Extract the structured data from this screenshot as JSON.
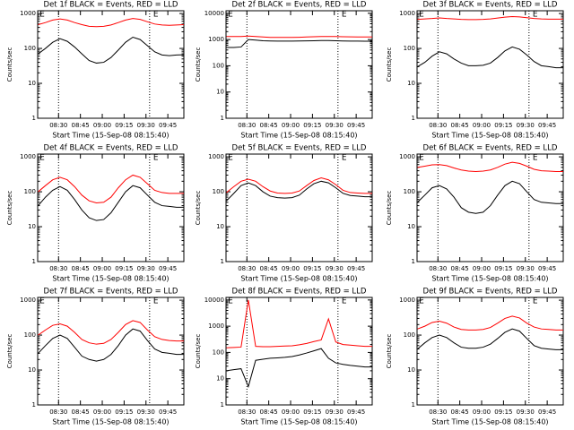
{
  "chart_data": [
    {
      "type": "line",
      "title": "Det 1f BLACK = Events, RED = LLD",
      "xlabel": "Start Time (15-Sep-08 08:15:40)",
      "ylabel": "Counts/sec",
      "log_scale": true,
      "x": [
        "08:16",
        "08:21",
        "08:26",
        "08:31",
        "08:36",
        "08:41",
        "08:46",
        "08:51",
        "08:56",
        "09:01",
        "09:06",
        "09:11",
        "09:16",
        "09:21",
        "09:26",
        "09:31",
        "09:36",
        "09:41",
        "09:46",
        "09:51",
        "09:56"
      ],
      "xlim": [
        "08:15:40",
        "09:56:00"
      ],
      "xticks": [
        "08:30",
        "08:45",
        "09:00",
        "09:15",
        "09:30",
        "09:45"
      ],
      "ylim": [
        1,
        1200
      ],
      "yticks": [
        1,
        10,
        100,
        1000
      ],
      "markers": [
        "08:30:00",
        "09:32:30"
      ],
      "annotations": [
        {
          "text": "E",
          "x": "08:17"
        },
        {
          "text": "E",
          "x": "09:35"
        }
      ],
      "series": [
        {
          "color": "#000000",
          "values": [
            70,
            100,
            150,
            190,
            160,
            110,
            70,
            45,
            38,
            40,
            55,
            90,
            150,
            210,
            180,
            120,
            80,
            65,
            62,
            65,
            66
          ]
        },
        {
          "color": "#ff0000",
          "values": [
            480,
            550,
            650,
            700,
            650,
            550,
            480,
            430,
            420,
            430,
            470,
            550,
            650,
            720,
            680,
            580,
            500,
            470,
            460,
            470,
            480
          ]
        }
      ]
    },
    {
      "type": "line",
      "title": "Det 2f BLACK = Events, RED = LLD",
      "xlabel": "Start Time (15-Sep-08 08:15:40)",
      "ylabel": "Counts/sec",
      "log_scale": true,
      "x": [
        "08:16",
        "08:21",
        "08:26",
        "08:31",
        "08:36",
        "08:41",
        "08:46",
        "08:51",
        "08:56",
        "09:01",
        "09:06",
        "09:11",
        "09:16",
        "09:21",
        "09:26",
        "09:31",
        "09:36",
        "09:41",
        "09:46",
        "09:51",
        "09:56"
      ],
      "xlim": [
        "08:15:40",
        "09:56:00"
      ],
      "xticks": [
        "08:30",
        "08:45",
        "09:00",
        "09:15",
        "09:30",
        "09:45"
      ],
      "ylim": [
        1,
        12500
      ],
      "yticks": [
        1,
        10,
        100,
        1000,
        10000
      ],
      "markers": [
        "08:30:00",
        "09:32:30"
      ],
      "annotations": [
        {
          "text": "E",
          "x": "08:17"
        },
        {
          "text": "E",
          "x": "09:35"
        }
      ],
      "series": [
        {
          "color": "#000000",
          "values": [
            500,
            500,
            520,
            1000,
            950,
            900,
            880,
            870,
            870,
            870,
            880,
            890,
            900,
            920,
            920,
            900,
            880,
            870,
            870,
            860,
            860
          ]
        },
        {
          "color": "#ff0000",
          "values": [
            1300,
            1300,
            1300,
            1350,
            1300,
            1250,
            1200,
            1200,
            1200,
            1200,
            1220,
            1250,
            1280,
            1300,
            1300,
            1300,
            1280,
            1270,
            1260,
            1260,
            1260
          ]
        }
      ]
    },
    {
      "type": "line",
      "title": "Det 3f BLACK = Events, RED = LLD",
      "xlabel": "Start Time (15-Sep-08 08:15:40)",
      "ylabel": "Counts/sec",
      "log_scale": true,
      "x": [
        "08:16",
        "08:21",
        "08:26",
        "08:31",
        "08:36",
        "08:41",
        "08:46",
        "08:51",
        "08:56",
        "09:01",
        "09:06",
        "09:11",
        "09:16",
        "09:21",
        "09:26",
        "09:31",
        "09:36",
        "09:41",
        "09:46",
        "09:51",
        "09:56"
      ],
      "xlim": [
        "08:15:40",
        "09:56:00"
      ],
      "xticks": [
        "08:30",
        "08:45",
        "09:00",
        "09:15",
        "09:30",
        "09:45"
      ],
      "ylim": [
        1,
        1200
      ],
      "yticks": [
        1,
        10,
        100,
        1000
      ],
      "markers": [
        "08:30:00",
        "09:32:30"
      ],
      "annotations": [
        {
          "text": "E",
          "x": "08:17"
        },
        {
          "text": "E",
          "x": "09:35"
        }
      ],
      "series": [
        {
          "color": "#000000",
          "values": [
            30,
            40,
            60,
            80,
            70,
            50,
            38,
            32,
            32,
            33,
            38,
            55,
            85,
            110,
            95,
            65,
            42,
            32,
            30,
            28,
            28
          ]
        },
        {
          "color": "#ff0000",
          "values": [
            680,
            700,
            720,
            750,
            720,
            700,
            680,
            670,
            670,
            680,
            700,
            740,
            790,
            820,
            800,
            760,
            720,
            700,
            690,
            690,
            690
          ]
        }
      ]
    },
    {
      "type": "line",
      "title": "Det 4f BLACK = Events, RED = LLD",
      "xlabel": "Start Time (15-Sep-08 08:15:40)",
      "ylabel": "Counts/sec",
      "log_scale": true,
      "x": [
        "08:16",
        "08:21",
        "08:26",
        "08:31",
        "08:36",
        "08:41",
        "08:46",
        "08:51",
        "08:56",
        "09:01",
        "09:06",
        "09:11",
        "09:16",
        "09:21",
        "09:26",
        "09:31",
        "09:36",
        "09:41",
        "09:46",
        "09:51",
        "09:56"
      ],
      "xlim": [
        "08:15:40",
        "09:56:00"
      ],
      "xticks": [
        "08:30",
        "08:45",
        "09:00",
        "09:15",
        "09:30",
        "09:45"
      ],
      "ylim": [
        1,
        1200
      ],
      "yticks": [
        1,
        10,
        100,
        1000
      ],
      "markers": [
        "08:30:00",
        "09:32:30"
      ],
      "annotations": [
        {
          "text": "E",
          "x": "08:17"
        },
        {
          "text": "E",
          "x": "09:35"
        }
      ],
      "series": [
        {
          "color": "#000000",
          "values": [
            40,
            70,
            110,
            140,
            110,
            60,
            30,
            18,
            15,
            16,
            25,
            50,
            100,
            150,
            130,
            80,
            50,
            40,
            38,
            36,
            36
          ]
        },
        {
          "color": "#ff0000",
          "values": [
            100,
            150,
            220,
            260,
            220,
            140,
            80,
            55,
            48,
            50,
            70,
            130,
            220,
            300,
            260,
            170,
            110,
            95,
            90,
            90,
            90
          ]
        }
      ]
    },
    {
      "type": "line",
      "title": "Det 5f BLACK = Events, RED = LLD",
      "xlabel": "Start Time (15-Sep-08 08:15:40)",
      "ylabel": "Counts/sec",
      "log_scale": true,
      "x": [
        "08:16",
        "08:21",
        "08:26",
        "08:31",
        "08:36",
        "08:41",
        "08:46",
        "08:51",
        "08:56",
        "09:01",
        "09:06",
        "09:11",
        "09:16",
        "09:21",
        "09:26",
        "09:31",
        "09:36",
        "09:41",
        "09:46",
        "09:51",
        "09:56"
      ],
      "xlim": [
        "08:15:40",
        "09:56:00"
      ],
      "xticks": [
        "08:30",
        "08:45",
        "09:00",
        "09:15",
        "09:30",
        "09:45"
      ],
      "ylim": [
        1,
        1200
      ],
      "yticks": [
        1,
        10,
        100,
        1000
      ],
      "markers": [
        "08:30:00",
        "09:32:30"
      ],
      "annotations": [
        {
          "text": "E",
          "x": "08:17"
        },
        {
          "text": "E",
          "x": "09:35"
        }
      ],
      "series": [
        {
          "color": "#000000",
          "values": [
            55,
            90,
            150,
            180,
            150,
            100,
            75,
            68,
            66,
            68,
            80,
            120,
            170,
            200,
            180,
            130,
            90,
            78,
            75,
            72,
            72
          ]
        },
        {
          "color": "#ff0000",
          "values": [
            95,
            140,
            200,
            230,
            200,
            140,
            105,
            92,
            90,
            92,
            105,
            150,
            210,
            250,
            220,
            160,
            110,
            95,
            92,
            90,
            90
          ]
        }
      ]
    },
    {
      "type": "line",
      "title": "Det 6f BLACK = Events, RED = LLD",
      "xlabel": "Start Time (15-Sep-08 08:15:40)",
      "ylabel": "Counts/sec",
      "log_scale": true,
      "x": [
        "08:16",
        "08:21",
        "08:26",
        "08:31",
        "08:36",
        "08:41",
        "08:46",
        "08:51",
        "08:56",
        "09:01",
        "09:06",
        "09:11",
        "09:16",
        "09:21",
        "09:26",
        "09:31",
        "09:36",
        "09:41",
        "09:46",
        "09:51",
        "09:56"
      ],
      "xlim": [
        "08:15:40",
        "09:56:00"
      ],
      "xticks": [
        "08:30",
        "08:45",
        "09:00",
        "09:15",
        "09:30",
        "09:45"
      ],
      "ylim": [
        1,
        1200
      ],
      "yticks": [
        1,
        10,
        100,
        1000
      ],
      "markers": [
        "08:30:00",
        "09:32:30"
      ],
      "annotations": [
        {
          "text": "E",
          "x": "08:17"
        },
        {
          "text": "E",
          "x": "09:35"
        }
      ],
      "series": [
        {
          "color": "#000000",
          "values": [
            50,
            80,
            130,
            150,
            120,
            70,
            35,
            26,
            24,
            26,
            40,
            80,
            150,
            200,
            170,
            100,
            60,
            50,
            48,
            46,
            46
          ]
        },
        {
          "color": "#ff0000",
          "values": [
            500,
            540,
            590,
            600,
            560,
            480,
            420,
            390,
            380,
            390,
            420,
            500,
            620,
            700,
            650,
            540,
            440,
            400,
            390,
            380,
            380
          ]
        }
      ]
    },
    {
      "type": "line",
      "title": "Det 7f BLACK = Events, RED = LLD",
      "xlabel": "Start Time (15-Sep-08 08:15:40)",
      "ylabel": "Counts/sec",
      "log_scale": true,
      "x": [
        "08:16",
        "08:21",
        "08:26",
        "08:31",
        "08:36",
        "08:41",
        "08:46",
        "08:51",
        "08:56",
        "09:01",
        "09:06",
        "09:11",
        "09:16",
        "09:21",
        "09:26",
        "09:31",
        "09:36",
        "09:41",
        "09:46",
        "09:51",
        "09:56"
      ],
      "xlim": [
        "08:15:40",
        "09:56:00"
      ],
      "xticks": [
        "08:30",
        "08:45",
        "09:00",
        "09:15",
        "09:30",
        "09:45"
      ],
      "ylim": [
        1,
        1200
      ],
      "yticks": [
        1,
        10,
        100,
        1000
      ],
      "markers": [
        "08:30:00",
        "09:32:30"
      ],
      "annotations": [
        {
          "text": "E",
          "x": "08:17"
        },
        {
          "text": "E",
          "x": "09:35"
        }
      ],
      "series": [
        {
          "color": "#000000",
          "values": [
            30,
            50,
            80,
            100,
            80,
            45,
            25,
            20,
            18,
            20,
            28,
            50,
            100,
            150,
            130,
            70,
            40,
            32,
            30,
            28,
            28
          ]
        },
        {
          "color": "#ff0000",
          "values": [
            100,
            140,
            190,
            210,
            180,
            120,
            75,
            60,
            55,
            58,
            75,
            120,
            200,
            260,
            230,
            140,
            90,
            75,
            70,
            68,
            68
          ]
        }
      ]
    },
    {
      "type": "line",
      "title": "Det 8f BLACK = Events, RED = LLD",
      "xlabel": "Start Time (15-Sep-08 08:15:40)",
      "ylabel": "Counts/sec",
      "log_scale": true,
      "x": [
        "08:16",
        "08:21",
        "08:26",
        "08:31",
        "08:36",
        "08:41",
        "08:46",
        "08:51",
        "08:56",
        "09:01",
        "09:06",
        "09:11",
        "09:16",
        "09:21",
        "09:26",
        "09:31",
        "09:36",
        "09:41",
        "09:46",
        "09:51",
        "09:56"
      ],
      "xlim": [
        "08:15:40",
        "09:56:00"
      ],
      "xticks": [
        "08:30",
        "08:45",
        "09:00",
        "09:15",
        "09:30",
        "09:45"
      ],
      "ylim": [
        1,
        12500
      ],
      "yticks": [
        1,
        10,
        100,
        1000,
        10000
      ],
      "markers": [
        "08:30:00",
        "09:32:30"
      ],
      "annotations": [
        {
          "text": "E",
          "x": "08:17"
        },
        {
          "text": "E",
          "x": "09:35"
        }
      ],
      "series": [
        {
          "color": "#000000",
          "values": [
            20,
            22,
            24,
            5,
            50,
            55,
            60,
            62,
            65,
            70,
            80,
            95,
            115,
            140,
            60,
            40,
            35,
            32,
            30,
            28,
            28
          ]
        },
        {
          "color": "#ff0000",
          "values": [
            150,
            155,
            160,
            10000,
            170,
            165,
            165,
            170,
            175,
            180,
            195,
            220,
            260,
            300,
            1900,
            250,
            200,
            190,
            180,
            170,
            170
          ]
        }
      ]
    },
    {
      "type": "line",
      "title": "Det 9f BLACK = Events, RED = LLD",
      "xlabel": "Start Time (15-Sep-08 08:15:40)",
      "ylabel": "Counts/sec",
      "log_scale": true,
      "x": [
        "08:16",
        "08:21",
        "08:26",
        "08:31",
        "08:36",
        "08:41",
        "08:46",
        "08:51",
        "08:56",
        "09:01",
        "09:06",
        "09:11",
        "09:16",
        "09:21",
        "09:26",
        "09:31",
        "09:36",
        "09:41",
        "09:46",
        "09:51",
        "09:56"
      ],
      "xlim": [
        "08:15:40",
        "09:56:00"
      ],
      "xticks": [
        "08:30",
        "08:45",
        "09:00",
        "09:15",
        "09:30",
        "09:45"
      ],
      "ylim": [
        1,
        1200
      ],
      "yticks": [
        1,
        10,
        100,
        1000
      ],
      "markers": [
        "08:30:00",
        "09:32:30"
      ],
      "annotations": [
        {
          "text": "E",
          "x": "08:17"
        },
        {
          "text": "E",
          "x": "09:35"
        }
      ],
      "series": [
        {
          "color": "#000000",
          "values": [
            40,
            60,
            85,
            100,
            85,
            60,
            45,
            42,
            42,
            45,
            55,
            80,
            120,
            150,
            130,
            80,
            50,
            42,
            40,
            38,
            38
          ]
        },
        {
          "color": "#ff0000",
          "values": [
            150,
            180,
            230,
            250,
            220,
            170,
            145,
            140,
            140,
            145,
            165,
            220,
            300,
            350,
            310,
            220,
            170,
            150,
            145,
            140,
            140
          ]
        }
      ]
    }
  ]
}
